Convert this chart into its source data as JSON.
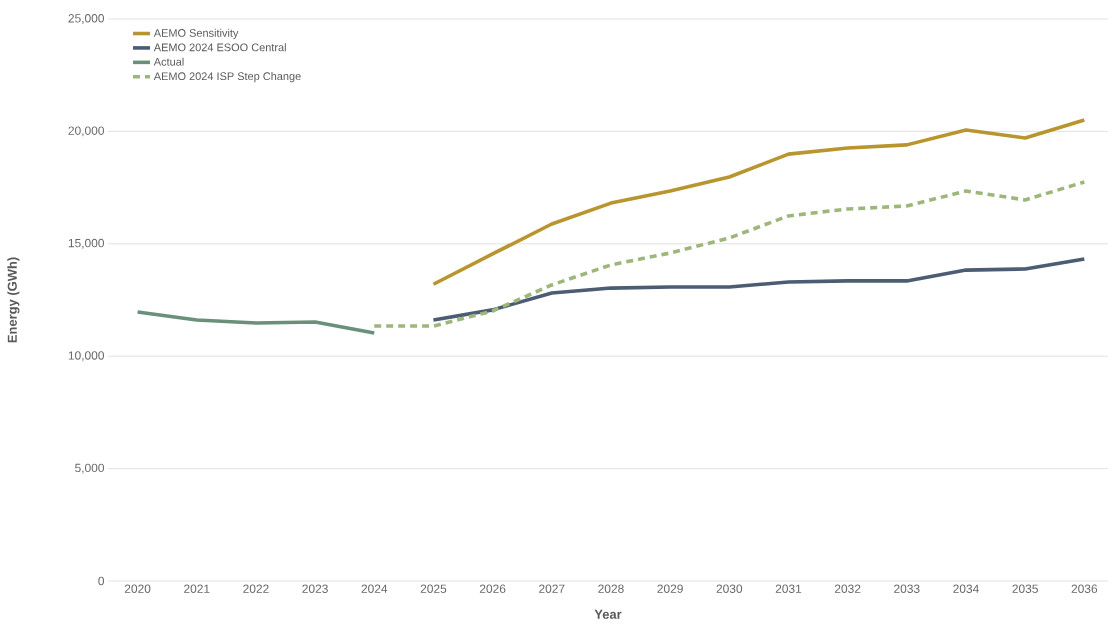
{
  "chart_data": {
    "type": "line",
    "xlabel": "Year",
    "ylabel": "Energy (GWh)",
    "categories": [
      "2020",
      "2021",
      "2022",
      "2023",
      "2024",
      "2025",
      "2026",
      "2027",
      "2028",
      "2029",
      "2030",
      "2031",
      "2032",
      "2033",
      "2034",
      "2035",
      "2036"
    ],
    "series": [
      {
        "name": "AEMO Sensitivity",
        "color": "#b8952e",
        "line_style": "solid",
        "values": [
          null,
          null,
          null,
          null,
          null,
          13200,
          14550,
          15880,
          16810,
          17350,
          17970,
          18990,
          19260,
          19400,
          20060,
          19710,
          20510
        ]
      },
      {
        "name": "AEMO 2024 ESOO Central",
        "color": "#4b5c73",
        "line_style": "solid",
        "values": [
          null,
          null,
          null,
          null,
          null,
          11610,
          12060,
          12810,
          13030,
          13080,
          13080,
          13300,
          13350,
          13350,
          13830,
          13880,
          14320
        ]
      },
      {
        "name": "Actual",
        "color": "#6a8f7a",
        "line_style": "solid",
        "values": [
          11970,
          11610,
          11480,
          11520,
          11030,
          null,
          null,
          null,
          null,
          null,
          null,
          null,
          null,
          null,
          null,
          null,
          null
        ]
      },
      {
        "name": "AEMO 2024 ISP Step Change",
        "color": "#9db77a",
        "line_style": "dashed",
        "values": [
          null,
          null,
          null,
          null,
          11340,
          11340,
          12010,
          13170,
          14060,
          14590,
          15260,
          16240,
          16550,
          16680,
          17350,
          16950,
          17750
        ]
      }
    ],
    "ylim": [
      0,
      25000
    ],
    "yticks": [
      0,
      {
        "value": 5000,
        "label": "5,000"
      },
      {
        "value": 10000,
        "label": "10,000"
      },
      {
        "value": 15000,
        "label": "15,000"
      },
      {
        "value": 20000,
        "label": "20,000"
      },
      {
        "value": 25000,
        "label": "25,000"
      }
    ],
    "grid": "y",
    "legend": "top left",
    "marker": "none"
  }
}
